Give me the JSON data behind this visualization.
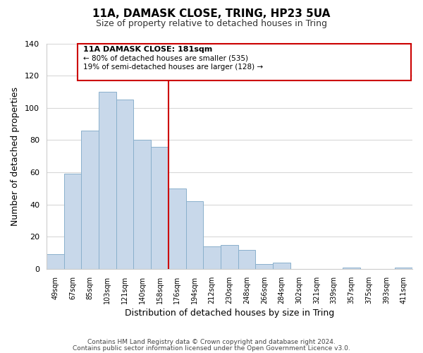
{
  "title": "11A, DAMASK CLOSE, TRING, HP23 5UA",
  "subtitle": "Size of property relative to detached houses in Tring",
  "xlabel": "Distribution of detached houses by size in Tring",
  "ylabel": "Number of detached properties",
  "footer_line1": "Contains HM Land Registry data © Crown copyright and database right 2024.",
  "footer_line2": "Contains public sector information licensed under the Open Government Licence v3.0.",
  "bar_labels": [
    "49sqm",
    "67sqm",
    "85sqm",
    "103sqm",
    "121sqm",
    "140sqm",
    "158sqm",
    "176sqm",
    "194sqm",
    "212sqm",
    "230sqm",
    "248sqm",
    "266sqm",
    "284sqm",
    "302sqm",
    "321sqm",
    "339sqm",
    "357sqm",
    "375sqm",
    "393sqm",
    "411sqm"
  ],
  "bar_values": [
    9,
    59,
    86,
    110,
    105,
    80,
    76,
    50,
    42,
    14,
    15,
    12,
    3,
    4,
    0,
    0,
    0,
    1,
    0,
    0,
    1
  ],
  "bar_color": "#c8d8ea",
  "bar_edgecolor": "#8ab0cc",
  "vline_x_index": 7,
  "vline_color": "#cc0000",
  "annotation_title": "11A DAMASK CLOSE: 181sqm",
  "annotation_line1": "← 80% of detached houses are smaller (535)",
  "annotation_line2": "19% of semi-detached houses are larger (128) →",
  "annotation_box_edgecolor": "#cc0000",
  "annotation_box_facecolor": "#ffffff",
  "ylim": [
    0,
    140
  ],
  "yticks": [
    0,
    20,
    40,
    60,
    80,
    100,
    120,
    140
  ],
  "background_color": "#ffffff",
  "grid_color": "#d8d8d8"
}
